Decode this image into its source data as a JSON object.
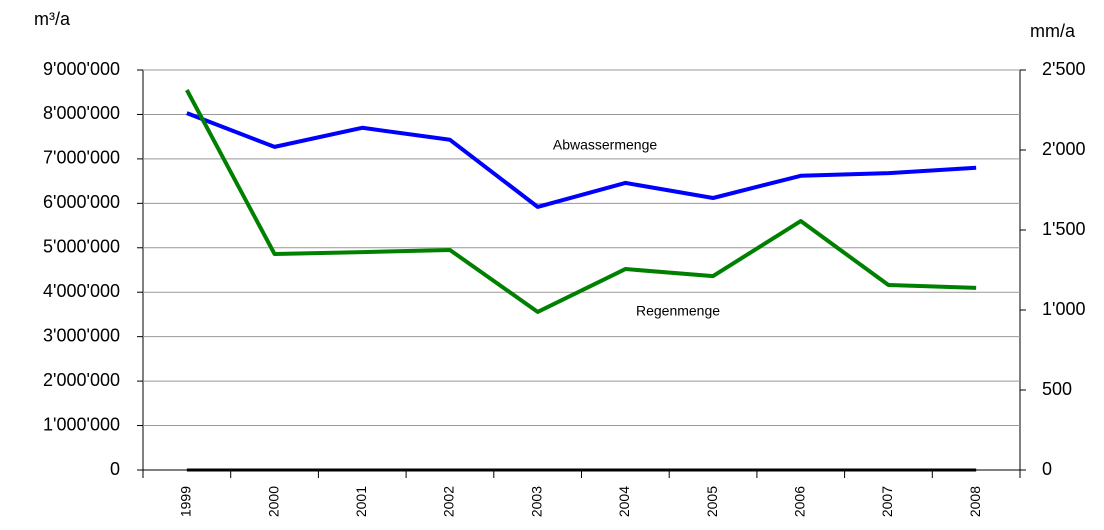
{
  "chart_data": {
    "type": "line",
    "y_label": "m³/a",
    "y2_label": "mm/a",
    "categories": [
      "1999",
      "2000",
      "2001",
      "2002",
      "2003",
      "2004",
      "2005",
      "2006",
      "2007",
      "2008"
    ],
    "series": [
      {
        "name": "Abwassermenge",
        "color": "#0000ff",
        "values": [
          8030000,
          7270000,
          7700000,
          7430000,
          5920000,
          6460000,
          6120000,
          6620000,
          6680000,
          6800000
        ]
      },
      {
        "name": "Regenmenge",
        "color": "#008000",
        "axis": "y2",
        "values": [
          2375,
          1350,
          1362,
          1375,
          988,
          1256,
          1212,
          1556,
          1156,
          1138
        ]
      }
    ],
    "ylim": [
      0,
      9000000
    ],
    "yticks": [
      0,
      {
        "value": 1000000,
        "label": "1'000'000"
      },
      {
        "value": 2000000,
        "label": "2'000'000"
      },
      {
        "value": 3000000,
        "label": "3'000'000"
      },
      {
        "value": 4000000,
        "label": "4'000'000"
      },
      {
        "value": 5000000,
        "label": "5'000'000"
      },
      {
        "value": 6000000,
        "label": "6'000'000"
      },
      {
        "value": 7000000,
        "label": "7'000'000"
      },
      {
        "value": 8000000,
        "label": "8'000'000"
      },
      {
        "value": 9000000,
        "label": "9'000'000"
      }
    ],
    "y2lim": [
      0,
      2500
    ],
    "y2ticks": [
      0,
      500,
      {
        "value": 1000,
        "label": "1'000"
      },
      {
        "value": 1500,
        "label": "1'500"
      },
      {
        "value": 2000,
        "label": "2'000"
      },
      {
        "value": 2500,
        "label": "2'500"
      }
    ],
    "grid": true
  }
}
